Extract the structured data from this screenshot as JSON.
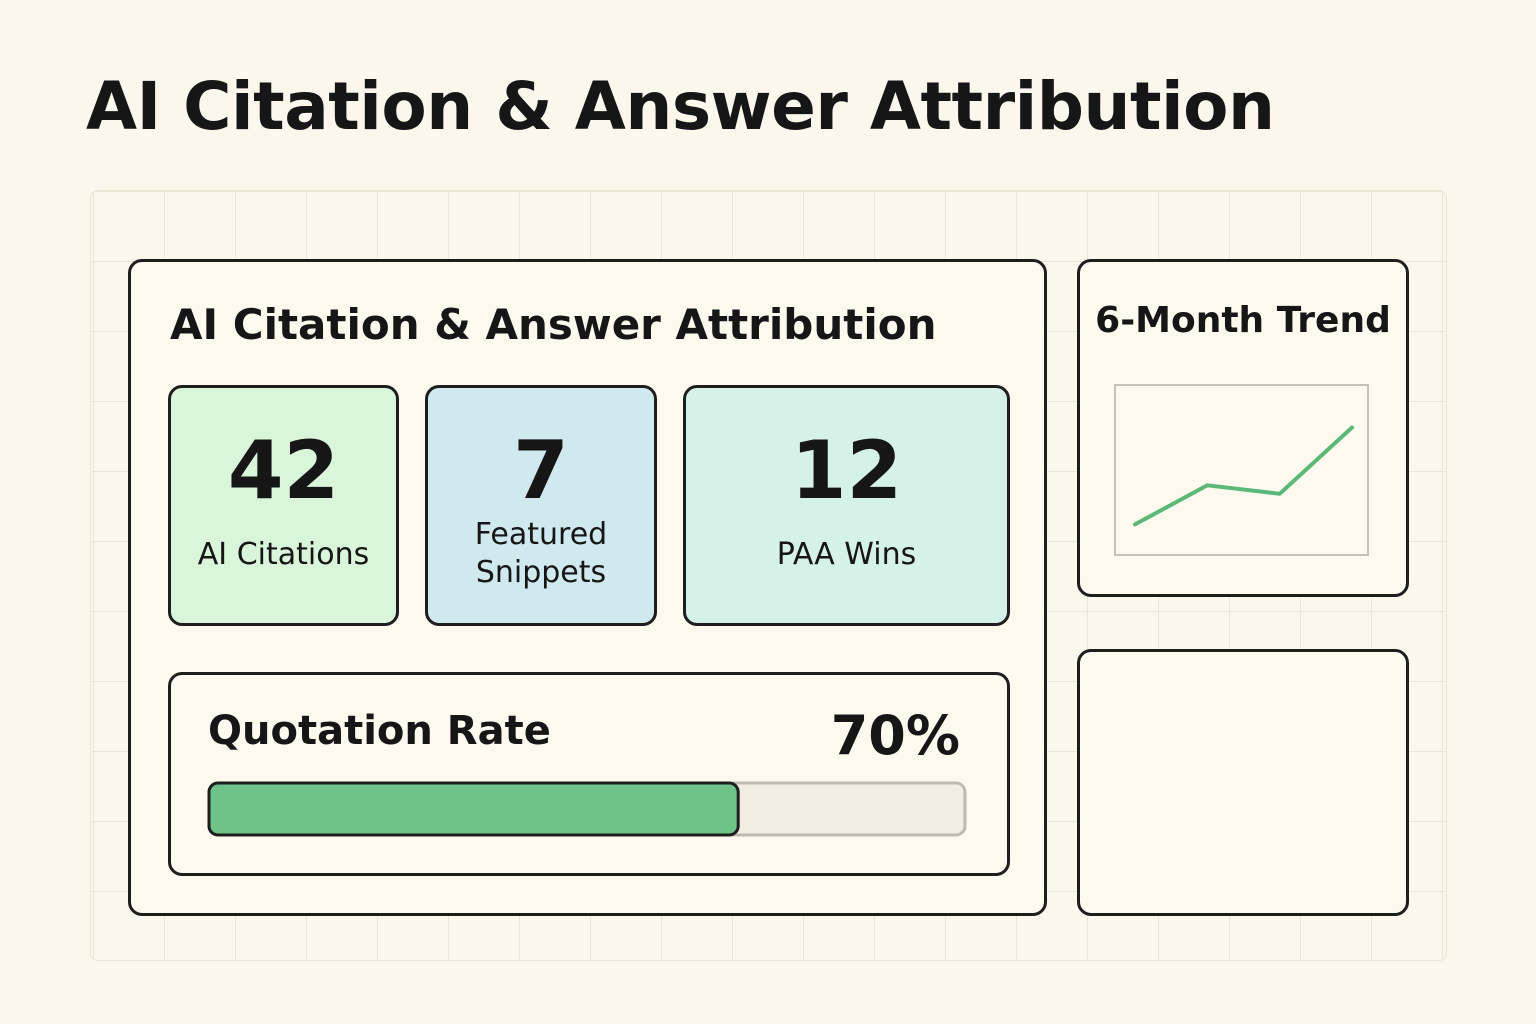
{
  "header": {
    "title": "AI Citation & Answer Attribution"
  },
  "panel": {
    "title": "AI Citation & Answer Attribution",
    "metrics": [
      {
        "value": "42",
        "label": "AI Citations",
        "color": "#d9f5da"
      },
      {
        "value": "7",
        "label": "Featured Snippets",
        "color": "#cfe9ef"
      },
      {
        "value": "12",
        "label": "PAA Wins",
        "color": "#d5f2e8"
      }
    ],
    "quotation": {
      "label": "Quotation Rate",
      "value": 70,
      "value_label": "70%",
      "max": 100,
      "color": "#6ec388"
    }
  },
  "trend": {
    "title": "6-Month Trend",
    "type": "line",
    "values": [
      18,
      41,
      36,
      75
    ],
    "ylim": [
      0,
      100
    ],
    "color": "#5cb878"
  }
}
